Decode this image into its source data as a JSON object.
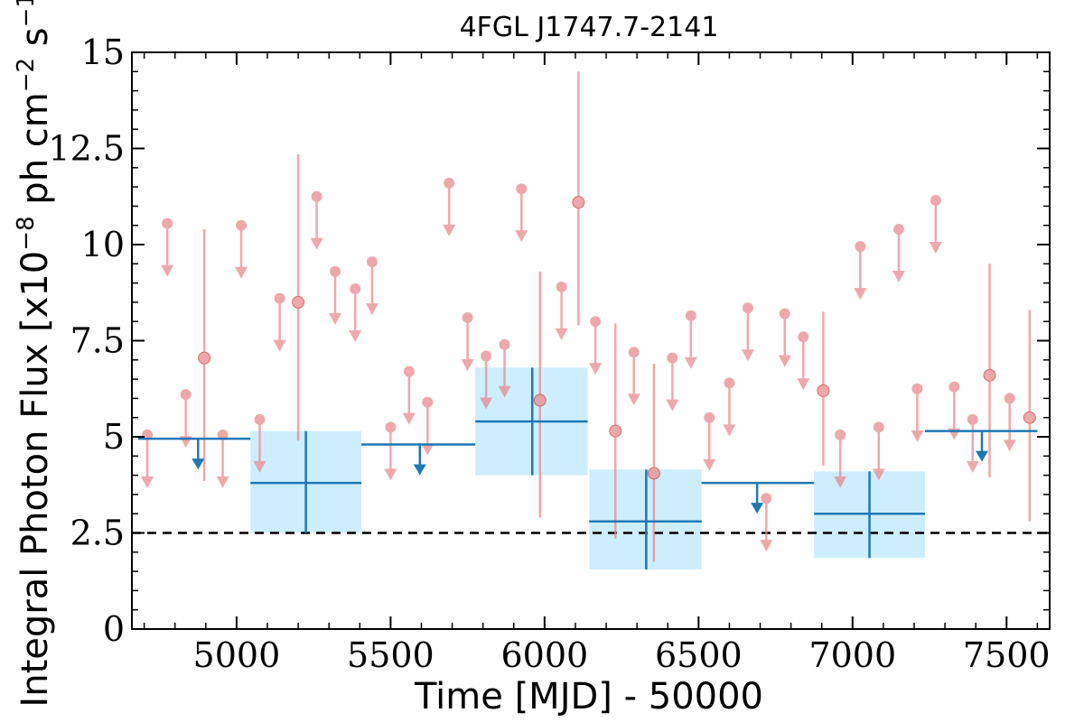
{
  "chart_data": {
    "type": "scatter",
    "title": "4FGL J1747.7-2141",
    "xlabel": "Time [MJD] - 50000",
    "ylabel": "Integral Photon Flux [x10^-8 ph cm^-2 s^-1]",
    "ylabel_parts": [
      "Integral Photon Flux [x10",
      "−8",
      " ph cm",
      "−2",
      " s",
      "−1",
      "]"
    ],
    "xlim": [
      4660,
      7640
    ],
    "ylim": [
      0,
      15
    ],
    "xticks": [
      5000,
      5500,
      6000,
      6500,
      7000,
      7500
    ],
    "xtick_labels": [
      "5000",
      "5500",
      "6000",
      "6500",
      "7000",
      "7500"
    ],
    "yticks": [
      0,
      2.5,
      5,
      7.5,
      10,
      12.5,
      15
    ],
    "ytick_labels": [
      "0",
      "2.5",
      "5",
      "7.5",
      "10",
      "12.5",
      "15"
    ],
    "reference_line": {
      "y": 2.5,
      "style": "dashed",
      "color": "#000000"
    },
    "colors": {
      "short_bins": "#e8878b",
      "long_bins": "#1f77b4",
      "long_bin_box": "#cdeeff"
    },
    "short_bins": {
      "upper_limits": [
        {
          "x": 4710,
          "y": 5.05
        },
        {
          "x": 4775,
          "y": 10.55
        },
        {
          "x": 4835,
          "y": 6.1
        },
        {
          "x": 4955,
          "y": 5.05
        },
        {
          "x": 5015,
          "y": 10.5
        },
        {
          "x": 5075,
          "y": 5.45
        },
        {
          "x": 5140,
          "y": 8.6
        },
        {
          "x": 5260,
          "y": 11.25
        },
        {
          "x": 5320,
          "y": 9.3
        },
        {
          "x": 5385,
          "y": 8.85
        },
        {
          "x": 5440,
          "y": 9.55
        },
        {
          "x": 5500,
          "y": 5.25
        },
        {
          "x": 5560,
          "y": 6.7
        },
        {
          "x": 5620,
          "y": 5.9
        },
        {
          "x": 5690,
          "y": 11.6
        },
        {
          "x": 5750,
          "y": 8.1
        },
        {
          "x": 5810,
          "y": 7.1
        },
        {
          "x": 5870,
          "y": 7.4
        },
        {
          "x": 5925,
          "y": 11.45
        },
        {
          "x": 6055,
          "y": 8.9
        },
        {
          "x": 6165,
          "y": 8.0
        },
        {
          "x": 6290,
          "y": 7.2
        },
        {
          "x": 6415,
          "y": 7.05
        },
        {
          "x": 6475,
          "y": 8.15
        },
        {
          "x": 6535,
          "y": 5.5
        },
        {
          "x": 6600,
          "y": 6.4
        },
        {
          "x": 6660,
          "y": 8.35
        },
        {
          "x": 6720,
          "y": 3.4
        },
        {
          "x": 6780,
          "y": 8.2
        },
        {
          "x": 6840,
          "y": 7.6
        },
        {
          "x": 6960,
          "y": 5.05
        },
        {
          "x": 7025,
          "y": 9.95
        },
        {
          "x": 7085,
          "y": 5.25
        },
        {
          "x": 7150,
          "y": 10.4
        },
        {
          "x": 7210,
          "y": 6.25
        },
        {
          "x": 7270,
          "y": 11.15
        },
        {
          "x": 7330,
          "y": 6.3
        },
        {
          "x": 7390,
          "y": 5.45
        },
        {
          "x": 7510,
          "y": 6.0
        }
      ],
      "detections": [
        {
          "x": 4895,
          "y": 7.05,
          "lo": 3.85,
          "hi": 10.4
        },
        {
          "x": 5200,
          "y": 8.5,
          "lo": 4.9,
          "hi": 12.35
        },
        {
          "x": 5985,
          "y": 5.95,
          "lo": 2.9,
          "hi": 9.3
        },
        {
          "x": 6110,
          "y": 11.1,
          "lo": 7.9,
          "hi": 14.5
        },
        {
          "x": 6230,
          "y": 5.15,
          "lo": 2.35,
          "hi": 7.95
        },
        {
          "x": 6355,
          "y": 4.05,
          "lo": 1.75,
          "hi": 6.9
        },
        {
          "x": 6905,
          "y": 6.2,
          "lo": 4.25,
          "hi": 8.25
        },
        {
          "x": 7445,
          "y": 6.6,
          "lo": 3.95,
          "hi": 9.5
        },
        {
          "x": 7575,
          "y": 5.5,
          "lo": 2.8,
          "hi": 8.3
        }
      ]
    },
    "long_bins": {
      "upper_limits": [
        {
          "x0": 4680,
          "x1": 5045,
          "y": 4.95,
          "arrow_x": 4875
        },
        {
          "x0": 5405,
          "x1": 5775,
          "y": 4.8,
          "arrow_x": 5595
        },
        {
          "x0": 6510,
          "x1": 6875,
          "y": 3.8,
          "arrow_x": 6690
        },
        {
          "x0": 7235,
          "x1": 7600,
          "y": 5.15,
          "arrow_x": 7420
        }
      ],
      "detections": [
        {
          "x0": 5045,
          "x1": 5405,
          "x": 5225,
          "y": 3.8,
          "lo": 2.5,
          "hi": 5.15
        },
        {
          "x0": 5775,
          "x1": 6140,
          "x": 5960,
          "y": 5.4,
          "lo": 4.0,
          "hi": 6.8
        },
        {
          "x0": 6145,
          "x1": 6510,
          "x": 6330,
          "y": 2.8,
          "lo": 1.55,
          "hi": 4.15
        },
        {
          "x0": 6875,
          "x1": 7235,
          "x": 7055,
          "y": 3.0,
          "lo": 1.85,
          "hi": 4.1
        }
      ]
    }
  }
}
